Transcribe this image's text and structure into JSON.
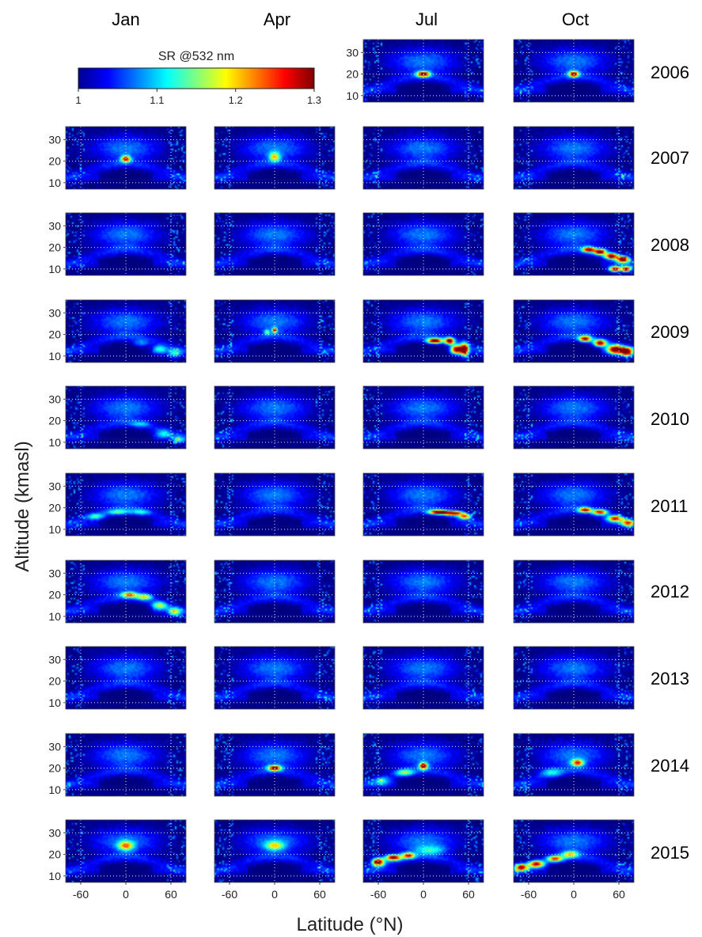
{
  "chart_data": {
    "type": "heatmap",
    "layout": "small-multiples",
    "columns": [
      "Jan",
      "Apr",
      "Jul",
      "Oct"
    ],
    "rows": [
      "2006",
      "2007",
      "2008",
      "2009",
      "2010",
      "2011",
      "2012",
      "2013",
      "2014",
      "2015"
    ],
    "xlabel": "Latitude (°N)",
    "ylabel": "Altitude (kmasl)",
    "xticks": [
      -60,
      0,
      60
    ],
    "yticks": [
      10,
      20,
      30
    ],
    "xlim": [
      -80,
      80
    ],
    "ylim": [
      7,
      36
    ],
    "grid": true,
    "colorbar": {
      "label": "SR @532 nm",
      "ticks": [
        "1",
        "1.1",
        "1.2",
        "1.3"
      ],
      "range": [
        1,
        1.3
      ],
      "colormap": "jet"
    },
    "colormap_stops": [
      "#00008f",
      "#0000ff",
      "#00ffff",
      "#ffff00",
      "#ff0000",
      "#800000"
    ],
    "missing_panels": [
      {
        "row": "2006",
        "col": "Jan"
      },
      {
        "row": "2006",
        "col": "Apr"
      }
    ],
    "plumes": {
      "2006-Jul": [
        [
          0,
          20,
          1.3,
          8,
          1.2
        ]
      ],
      "2006-Oct": [
        [
          0,
          20,
          1.3,
          6,
          1.3
        ]
      ],
      "2007-Jan": [
        [
          0,
          21,
          1.24,
          6,
          1.5
        ]
      ],
      "2007-Apr": [
        [
          0,
          22,
          1.16,
          7,
          2
        ]
      ],
      "2008-Oct": [
        [
          20,
          19,
          1.28,
          8,
          1.2
        ],
        [
          35,
          18,
          1.3,
          8,
          1.3
        ],
        [
          50,
          16,
          1.3,
          8,
          1.3
        ],
        [
          65,
          14.5,
          1.3,
          8,
          1.5
        ],
        [
          55,
          10,
          1.3,
          8,
          1.2
        ],
        [
          70,
          10,
          1.3,
          6,
          1.2
        ]
      ],
      "2009-Jan": [
        [
          20,
          16,
          1.06,
          10,
          1.8
        ],
        [
          45,
          13,
          1.09,
          10,
          2
        ],
        [
          65,
          11,
          1.1,
          8,
          2
        ]
      ],
      "2009-Apr": [
        [
          0,
          22,
          1.25,
          3,
          1.2
        ],
        [
          -10,
          21,
          1.1,
          4,
          1.2
        ]
      ],
      "2009-Jul": [
        [
          15,
          17,
          1.3,
          10,
          1.2
        ],
        [
          35,
          17,
          1.3,
          6,
          1.5
        ],
        [
          45,
          13,
          1.3,
          8,
          2
        ],
        [
          55,
          13,
          1.28,
          5,
          3
        ]
      ],
      "2009-Oct": [
        [
          15,
          18,
          1.26,
          8,
          1.3
        ],
        [
          35,
          16,
          1.28,
          8,
          1.5
        ],
        [
          55,
          13,
          1.3,
          10,
          2
        ],
        [
          70,
          12,
          1.3,
          8,
          2
        ]
      ],
      "2010-Jan": [
        [
          20,
          18.5,
          1.06,
          12,
          1.2
        ],
        [
          50,
          14,
          1.08,
          10,
          2
        ],
        [
          70,
          11,
          1.1,
          8,
          1.5
        ]
      ],
      "2011-Jan": [
        [
          -40,
          16,
          1.1,
          12,
          1.4
        ],
        [
          -10,
          18,
          1.1,
          14,
          1.2
        ],
        [
          20,
          18,
          1.08,
          12,
          1.3
        ]
      ],
      "2011-Jul": [
        [
          20,
          18,
          1.3,
          12,
          1
        ],
        [
          40,
          17.5,
          1.3,
          12,
          1
        ],
        [
          55,
          16,
          1.22,
          8,
          1.2
        ]
      ],
      "2011-Oct": [
        [
          15,
          19,
          1.26,
          8,
          1.1
        ],
        [
          35,
          18,
          1.24,
          10,
          1.2
        ],
        [
          55,
          15,
          1.24,
          10,
          1.4
        ],
        [
          72,
          13,
          1.22,
          8,
          1.5
        ]
      ],
      "2012-Jan": [
        [
          5,
          20,
          1.2,
          10,
          1.2
        ],
        [
          25,
          19,
          1.16,
          10,
          1.3
        ],
        [
          45,
          15,
          1.14,
          10,
          1.8
        ],
        [
          65,
          12,
          1.14,
          8,
          2
        ]
      ],
      "2014-Apr": [
        [
          0,
          20,
          1.3,
          8,
          1.2
        ]
      ],
      "2014-Jul": [
        [
          0,
          21,
          1.3,
          5,
          1.5
        ],
        [
          -25,
          18,
          1.12,
          12,
          1.5
        ],
        [
          -55,
          14,
          1.08,
          10,
          2
        ]
      ],
      "2014-Oct": [
        [
          5,
          22.5,
          1.22,
          8,
          1.5
        ],
        [
          -30,
          18,
          1.08,
          14,
          2
        ]
      ],
      "2015-Jan": [
        [
          0,
          24,
          1.18,
          10,
          2
        ]
      ],
      "2015-Apr": [
        [
          0,
          24,
          1.14,
          12,
          2
        ]
      ],
      "2015-Jul": [
        [
          -60,
          16.5,
          1.3,
          8,
          1.8
        ],
        [
          -40,
          18.5,
          1.3,
          10,
          1.3
        ],
        [
          -20,
          19.5,
          1.24,
          8,
          1.3
        ],
        [
          10,
          22,
          1.08,
          20,
          2
        ]
      ],
      "2015-Oct": [
        [
          -70,
          14,
          1.28,
          8,
          1.5
        ],
        [
          -50,
          15.5,
          1.26,
          10,
          1.5
        ],
        [
          -25,
          18,
          1.22,
          10,
          1.3
        ],
        [
          -5,
          20,
          1.16,
          10,
          1.5
        ]
      ]
    },
    "plume_fields": [
      "latitude",
      "altitude",
      "sr",
      "lat_width",
      "alt_width"
    ]
  }
}
